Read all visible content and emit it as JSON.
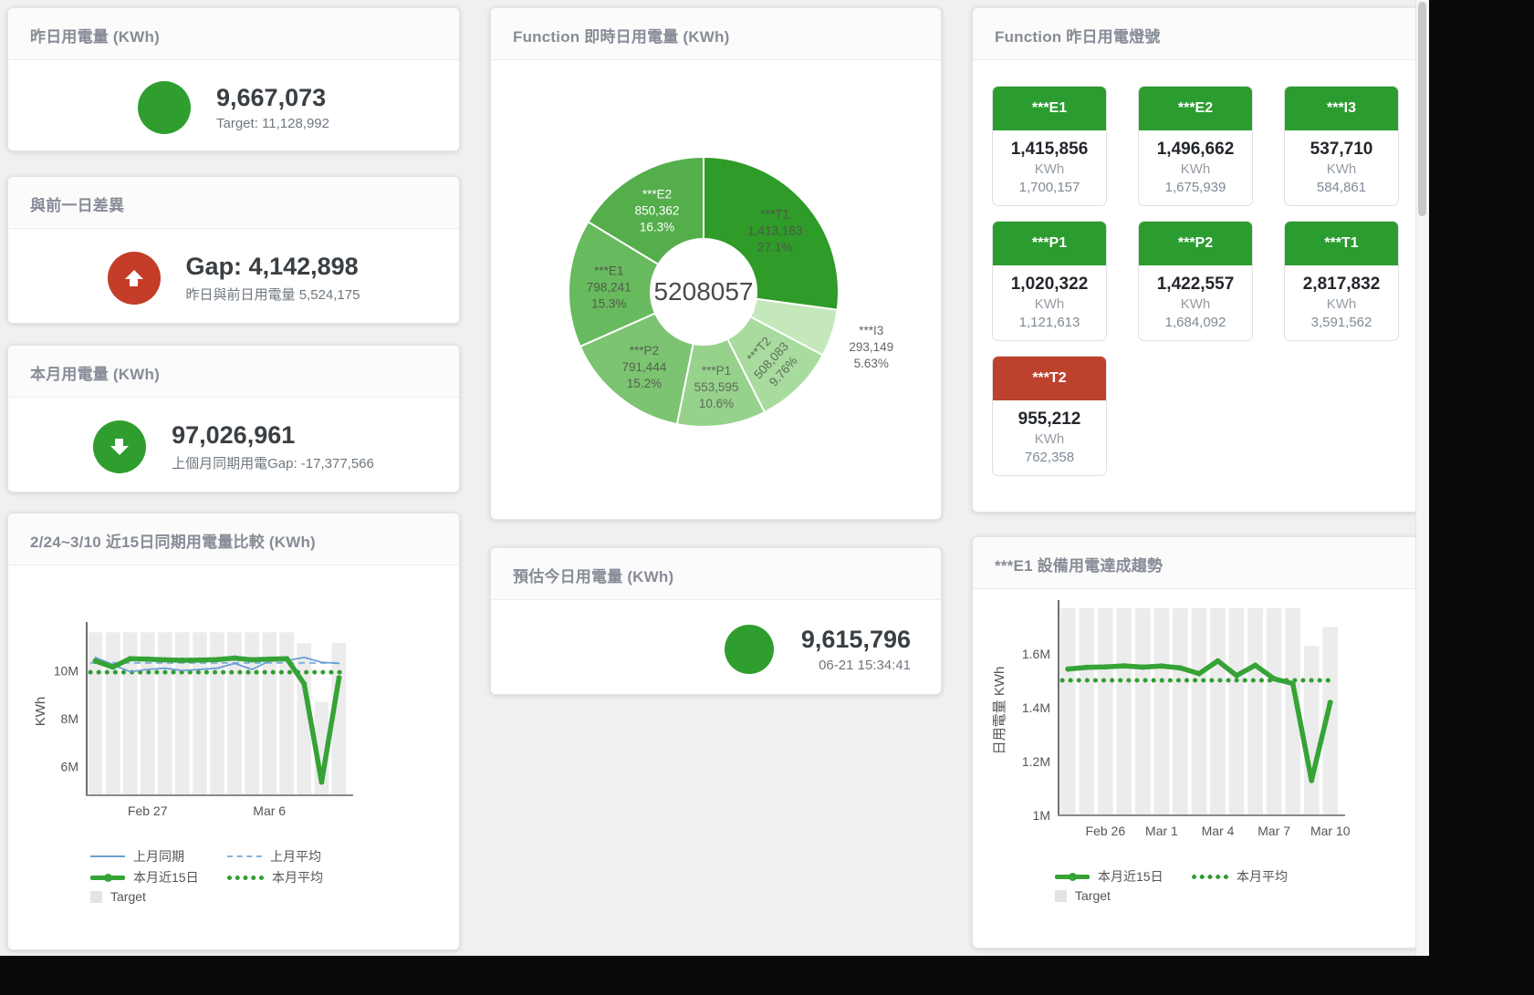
{
  "page": {
    "background": "#f0f0f1",
    "letterbox": "#0a0a0a"
  },
  "colors": {
    "green": "#2f9e2f",
    "red": "#c33d28",
    "tile_green": "#2b9c2f",
    "tile_red": "#bd422e",
    "bar_gray": "#ececec",
    "blue": "#6b9fd4",
    "blue_light": "#82b2de",
    "thick_green": "#35a335",
    "dot_green": "#2f9e2f"
  },
  "cards": {
    "yesterday": {
      "title": "昨日用電量 (KWh)",
      "value": "9,667,073",
      "subtitle": "Target: 11,128,992"
    },
    "gap": {
      "title": "與前一日差異",
      "value": "Gap: 4,142,898",
      "subtitle": "昨日與前日用電量 5,524,175"
    },
    "month": {
      "title": "本月用電量 (KWh)",
      "value": "97,026,961",
      "subtitle": "上個月同期用電Gap: -17,377,566"
    },
    "forecast": {
      "title": "預估今日用電量 (KWh)",
      "value": "9,615,796",
      "subtitle": "06-21 15:34:41"
    },
    "lights": {
      "title": "Function 昨日用電燈號",
      "tiles": [
        {
          "label": "***E1",
          "value": "1,415,856",
          "unit": "KWh",
          "target": "1,700,157",
          "status": "green"
        },
        {
          "label": "***E2",
          "value": "1,496,662",
          "unit": "KWh",
          "target": "1,675,939",
          "status": "green"
        },
        {
          "label": "***I3",
          "value": "537,710",
          "unit": "KWh",
          "target": "584,861",
          "status": "green"
        },
        {
          "label": "***P1",
          "value": "1,020,322",
          "unit": "KWh",
          "target": "1,121,613",
          "status": "green"
        },
        {
          "label": "***P2",
          "value": "1,422,557",
          "unit": "KWh",
          "target": "1,684,092",
          "status": "green"
        },
        {
          "label": "***T1",
          "value": "2,817,832",
          "unit": "KWh",
          "target": "3,591,562",
          "status": "green"
        },
        {
          "label": "***T2",
          "value": "955,212",
          "unit": "KWh",
          "target": "762,358",
          "status": "red"
        }
      ]
    }
  },
  "chart_data": [
    {
      "id": "realtime_donut",
      "type": "pie",
      "title": "Function 即時日用電量 (KWh)",
      "center_total": "5208057",
      "slices": [
        {
          "name": "***T1",
          "value": 1413183,
          "value_label": "1,413,183",
          "share": 27.1,
          "pct_label": "27.1%",
          "color": "#2f9b28",
          "label_color": "#4c5948",
          "label": "inside"
        },
        {
          "name": "***I3",
          "value": 293149,
          "value_label": "293,149",
          "share": 5.63,
          "pct_label": "5.63%",
          "color": "#c5e7bc",
          "label_color": "#666666",
          "label": "outside"
        },
        {
          "name": "***T2",
          "value": 508083,
          "value_label": "508,083",
          "share": 9.76,
          "pct_label": "9.76%",
          "color": "#a8db9e",
          "label_color": "#5d6b59",
          "label": "inside",
          "rotate": -48
        },
        {
          "name": "***P1",
          "value": 553595,
          "value_label": "553,595",
          "share": 10.6,
          "pct_label": "10.6%",
          "color": "#96d28b",
          "label_color": "#5d6b59",
          "label": "inside"
        },
        {
          "name": "***P2",
          "value": 791444,
          "value_label": "791,444",
          "share": 15.2,
          "pct_label": "15.2%",
          "color": "#7cc471",
          "label_color": "#556152",
          "label": "inside"
        },
        {
          "name": "***E1",
          "value": 798241,
          "value_label": "798,241",
          "share": 15.3,
          "pct_label": "15.3%",
          "color": "#68ba5e",
          "label_color": "#4e5c4b",
          "label": "inside"
        },
        {
          "name": "***E2",
          "value": 850362,
          "value_label": "850,362",
          "share": 16.3,
          "pct_label": "16.3%",
          "color": "#54ae4b",
          "label_color": "#ffffff",
          "label": "inside"
        }
      ]
    },
    {
      "id": "compare15",
      "type": "line",
      "title": "2/24~3/10 近15日同期用電量比較 (KWh)",
      "ylabel": "KWh",
      "unit": "M KWh",
      "categories": [
        "2/24",
        "2/25",
        "2/26",
        "2/27",
        "2/28",
        "3/1",
        "3/2",
        "3/3",
        "3/4",
        "3/5",
        "3/6",
        "3/7",
        "3/8",
        "3/9",
        "3/10"
      ],
      "xticks": [
        {
          "index": 3,
          "label": "Feb 27"
        },
        {
          "index": 10,
          "label": "Mar 6"
        }
      ],
      "yticks": [
        {
          "value": 6,
          "label": "6M"
        },
        {
          "value": 8,
          "label": "8M"
        },
        {
          "value": 10,
          "label": "10M"
        }
      ],
      "ylim": [
        4.8,
        11.8
      ],
      "grid": false,
      "legend_position": "bottom",
      "series": [
        {
          "name": "上月同期",
          "kind": "line",
          "style": "thin",
          "color": "#6b9fd4",
          "values": [
            10.55,
            10.25,
            9.95,
            10.05,
            10.1,
            10.0,
            10.05,
            10.1,
            10.3,
            10.05,
            10.4,
            10.42,
            10.55,
            10.35,
            10.3
          ]
        },
        {
          "name": "上月平均",
          "kind": "constant",
          "style": "dashed",
          "color": "#82b2de",
          "value": 10.32
        },
        {
          "name": "本月近15日",
          "kind": "line",
          "style": "thick",
          "color": "#35a335",
          "values": [
            10.4,
            10.15,
            10.5,
            10.48,
            10.45,
            10.43,
            10.44,
            10.46,
            10.52,
            10.45,
            10.48,
            10.5,
            9.45,
            5.35,
            9.7
          ]
        },
        {
          "name": "本月平均",
          "kind": "constant",
          "style": "dotted",
          "color": "#2f9e2f",
          "value": 9.93
        },
        {
          "name": "Target",
          "kind": "bar",
          "style": "bar",
          "color": "#ececec",
          "values": [
            11.6,
            11.6,
            11.6,
            11.6,
            11.6,
            11.6,
            11.6,
            11.6,
            11.6,
            11.6,
            11.6,
            11.6,
            11.15,
            8.7,
            11.15
          ]
        }
      ],
      "legend_rows": [
        [
          "上月同期",
          "上月平均"
        ],
        [
          "本月近15日",
          "本月平均"
        ],
        [
          "Target"
        ]
      ]
    },
    {
      "id": "e1_trend",
      "type": "line",
      "title": "***E1 設備用電達成趨勢",
      "ylabel": "日用電量 KWh",
      "unit": "M KWh",
      "categories": [
        "2/24",
        "2/25",
        "2/26",
        "2/27",
        "2/28",
        "3/1",
        "3/2",
        "3/3",
        "3/4",
        "3/5",
        "3/6",
        "3/7",
        "3/8",
        "3/9",
        "3/10"
      ],
      "xticks": [
        {
          "index": 2,
          "label": "Feb 26"
        },
        {
          "index": 5,
          "label": "Mar 1"
        },
        {
          "index": 8,
          "label": "Mar 4"
        },
        {
          "index": 11,
          "label": "Mar 7"
        },
        {
          "index": 14,
          "label": "Mar 10"
        }
      ],
      "yticks": [
        {
          "value": 1.0,
          "label": "1M"
        },
        {
          "value": 1.2,
          "label": "1.2M"
        },
        {
          "value": 1.4,
          "label": "1.4M"
        },
        {
          "value": 1.6,
          "label": "1.6M"
        }
      ],
      "ylim": [
        1.0,
        1.78
      ],
      "grid": false,
      "legend_position": "bottom",
      "series": [
        {
          "name": "本月近15日",
          "kind": "line",
          "style": "thick",
          "color": "#35a335",
          "values": [
            1.544,
            1.55,
            1.552,
            1.556,
            1.551,
            1.555,
            1.548,
            1.527,
            1.574,
            1.52,
            1.558,
            1.508,
            1.49,
            1.13,
            1.42
          ]
        },
        {
          "name": "本月平均",
          "kind": "constant",
          "style": "dotted",
          "color": "#2f9e2f",
          "value": 1.502
        },
        {
          "name": "Target",
          "kind": "bar",
          "style": "bar",
          "color": "#ececec",
          "values": [
            1.77,
            1.77,
            1.77,
            1.77,
            1.77,
            1.77,
            1.77,
            1.77,
            1.77,
            1.77,
            1.77,
            1.77,
            1.77,
            1.63,
            1.7
          ]
        }
      ],
      "legend_rows": [
        [
          "本月近15日",
          "本月平均"
        ],
        [
          "Target"
        ]
      ]
    }
  ]
}
